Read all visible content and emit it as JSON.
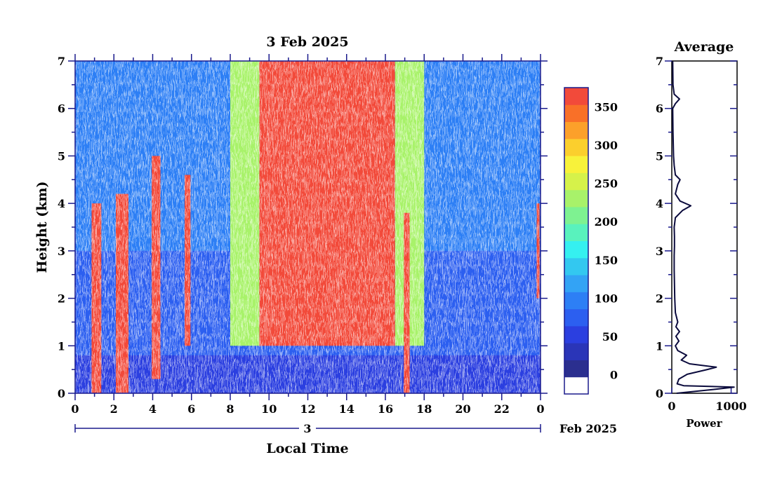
{
  "chart_data": [
    {
      "type": "heatmap",
      "title": "3 Feb 2025",
      "xlabel": "Local Time",
      "ylabel": "Height (km)",
      "x_ticks": [
        "0",
        "2",
        "4",
        "6",
        "8",
        "10",
        "12",
        "14",
        "16",
        "18",
        "20",
        "22",
        "0"
      ],
      "xlim": [
        0,
        24
      ],
      "y_ticks": [
        "0",
        "1",
        "2",
        "3",
        "4",
        "5",
        "6",
        "7"
      ],
      "ylim": [
        0,
        7
      ],
      "date_bar": {
        "day_label": "3",
        "month_label": "Feb 2025"
      },
      "colorbar": {
        "tick_labels": [
          "0",
          "50",
          "100",
          "150",
          "200",
          "250",
          "300",
          "350"
        ],
        "tick_values": [
          0,
          50,
          100,
          150,
          200,
          250,
          300,
          350
        ],
        "range": [
          -25,
          375
        ],
        "colors": [
          "#ffffff",
          "#2b2f8f",
          "#2a35b8",
          "#2b3fe0",
          "#2c5ff0",
          "#2d7ff5",
          "#33a3f5",
          "#33c8f0",
          "#35f0f0",
          "#59f2bd",
          "#7ef291",
          "#a8f26a",
          "#d6f24a",
          "#f8f23a",
          "#fbcf2d",
          "#fca02a",
          "#f97028",
          "#f24a3a"
        ]
      },
      "regions": [
        {
          "label": "strong layer 09-16 LT",
          "t": [
            9.5,
            16.5
          ],
          "h": [
            1.0,
            7.0
          ],
          "value": 360
        },
        {
          "label": "transition 08-10 LT",
          "t": [
            8.0,
            9.5
          ],
          "h": [
            1.0,
            7.0
          ],
          "value": 240
        },
        {
          "label": "transition 16-18 LT",
          "t": [
            16.5,
            18.0
          ],
          "h": [
            1.0,
            7.0
          ],
          "value": 220
        },
        {
          "label": "near-surface layer",
          "t": [
            0.0,
            24.0
          ],
          "h": [
            0.0,
            0.8
          ],
          "value": 60
        },
        {
          "label": "column 1.0 LT",
          "t": [
            0.85,
            1.35
          ],
          "h": [
            0.0,
            4.0
          ],
          "value": 370
        },
        {
          "label": "column 2.4 LT",
          "t": [
            2.1,
            2.75
          ],
          "h": [
            0.0,
            4.2
          ],
          "value": 370
        },
        {
          "label": "column 4.1 LT",
          "t": [
            3.95,
            4.4
          ],
          "h": [
            0.3,
            5.0
          ],
          "value": 370
        },
        {
          "label": "column 5.8 LT",
          "t": [
            5.65,
            5.95
          ],
          "h": [
            1.0,
            4.6
          ],
          "value": 370
        },
        {
          "label": "column 17.1 LT",
          "t": [
            16.95,
            17.25
          ],
          "h": [
            0.0,
            3.8
          ],
          "value": 370
        },
        {
          "label": "column 23.9 LT",
          "t": [
            23.8,
            23.95
          ],
          "h": [
            2.0,
            4.0
          ],
          "value": 370
        }
      ]
    },
    {
      "type": "line",
      "title": "Average",
      "xlabel": "Power",
      "x_ticks": [
        "0",
        "1000"
      ],
      "xlim": [
        0,
        1100
      ],
      "y_ticks": [
        "0",
        "1",
        "2",
        "3",
        "4",
        "5",
        "6",
        "7"
      ],
      "ylim": [
        0,
        7
      ],
      "series": [
        {
          "points": [
            [
              0.0,
              80
            ],
            [
              0.08,
              700
            ],
            [
              0.13,
              1050
            ],
            [
              0.16,
              200
            ],
            [
              0.2,
              90
            ],
            [
              0.3,
              120
            ],
            [
              0.4,
              260
            ],
            [
              0.5,
              600
            ],
            [
              0.55,
              750
            ],
            [
              0.62,
              300
            ],
            [
              0.7,
              160
            ],
            [
              0.8,
              250
            ],
            [
              0.9,
              100
            ],
            [
              1.0,
              60
            ],
            [
              1.1,
              120
            ],
            [
              1.2,
              70
            ],
            [
              1.3,
              130
            ],
            [
              1.4,
              70
            ],
            [
              1.5,
              100
            ],
            [
              1.7,
              60
            ],
            [
              2.0,
              50
            ],
            [
              2.3,
              45
            ],
            [
              2.6,
              40
            ],
            [
              2.9,
              40
            ],
            [
              3.1,
              45
            ],
            [
              3.3,
              45
            ],
            [
              3.5,
              40
            ],
            [
              3.7,
              60
            ],
            [
              3.85,
              180
            ],
            [
              3.95,
              320
            ],
            [
              4.05,
              140
            ],
            [
              4.2,
              60
            ],
            [
              4.4,
              100
            ],
            [
              4.5,
              140
            ],
            [
              4.6,
              60
            ],
            [
              4.8,
              40
            ],
            [
              5.0,
              30
            ],
            [
              5.5,
              20
            ],
            [
              6.0,
              15
            ],
            [
              6.1,
              60
            ],
            [
              6.2,
              130
            ],
            [
              6.3,
              40
            ],
            [
              6.5,
              20
            ],
            [
              7.0,
              15
            ]
          ]
        }
      ]
    }
  ]
}
